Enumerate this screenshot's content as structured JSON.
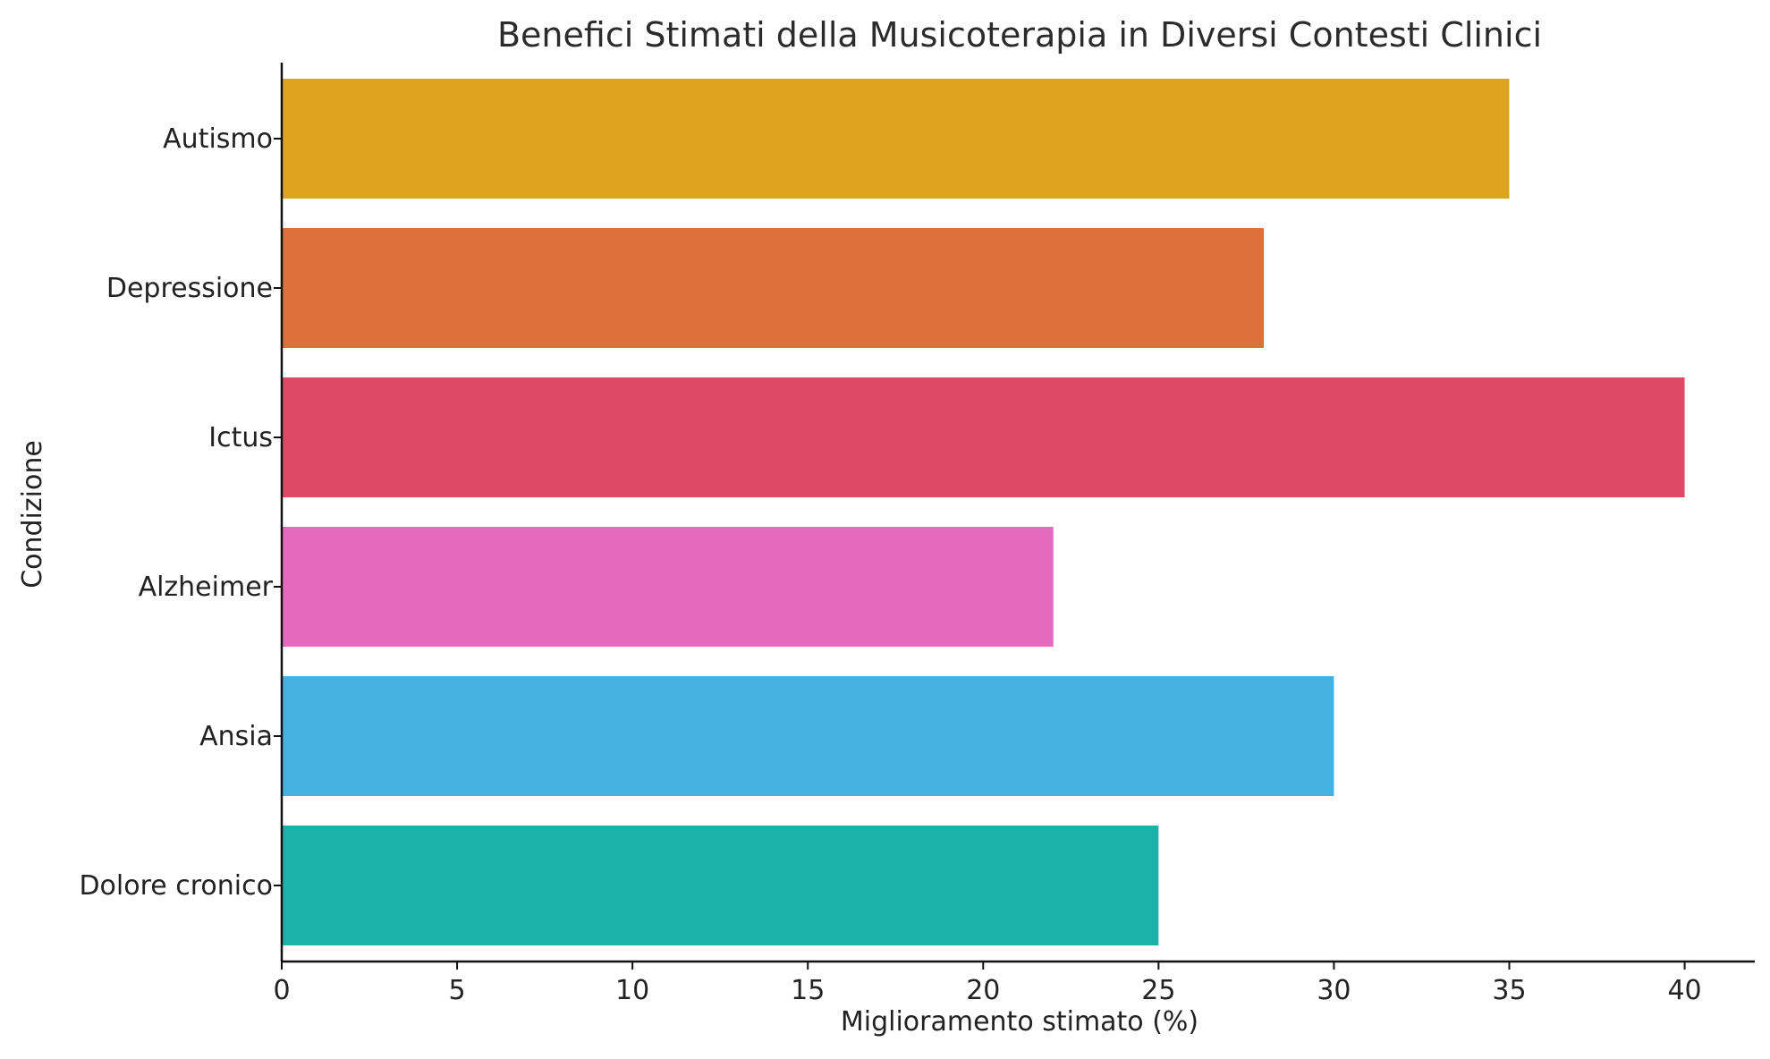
{
  "chart_data": {
    "type": "bar",
    "orientation": "horizontal",
    "title": "Benefici Stimati della Musicoterapia in Diversi Contesti Clinici",
    "xlabel": "Miglioramento stimato (%)",
    "ylabel": "Condizione",
    "categories": [
      "Autismo",
      "Depressione",
      "Ictus",
      "Alzheimer",
      "Ansia",
      "Dolore cronico"
    ],
    "values": [
      35,
      28,
      40,
      22,
      30,
      25
    ],
    "colors": [
      "#DFA320",
      "#DD6F3A",
      "#DE4A65",
      "#E56ABD",
      "#43B2E3",
      "#1BB2A9"
    ],
    "xlim": [
      0,
      42
    ],
    "xticks": [
      0,
      5,
      10,
      15,
      20,
      25,
      30,
      35,
      40
    ],
    "grid": false,
    "legend": "none"
  }
}
